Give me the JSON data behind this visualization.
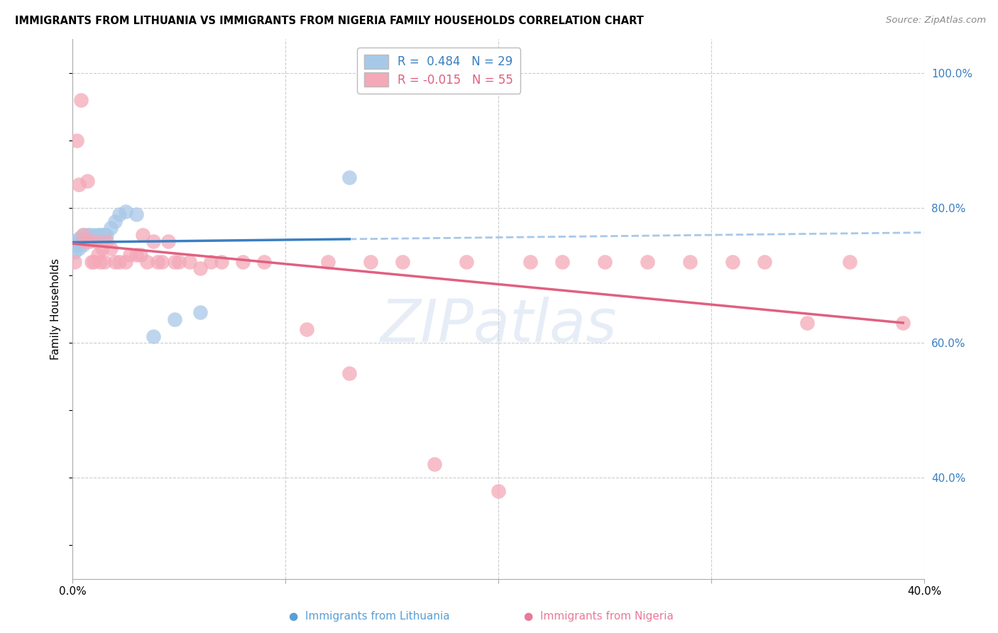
{
  "title": "IMMIGRANTS FROM LITHUANIA VS IMMIGRANTS FROM NIGERIA FAMILY HOUSEHOLDS CORRELATION CHART",
  "source": "Source: ZipAtlas.com",
  "ylabel": "Family Households",
  "xlim": [
    0.0,
    0.4
  ],
  "ylim": [
    0.25,
    1.05
  ],
  "x_ticks": [
    0.0,
    0.1,
    0.2,
    0.3,
    0.4
  ],
  "x_tick_labels": [
    "0.0%",
    "",
    "",
    "",
    "40.0%"
  ],
  "y_ticks_right": [
    0.4,
    0.6,
    0.8,
    1.0
  ],
  "y_tick_labels_right": [
    "40.0%",
    "60.0%",
    "80.0%",
    "100.0%"
  ],
  "legend_labels": [
    "R =  0.484   N = 29",
    "R = -0.015   N = 55"
  ],
  "watermark": "ZIPatlas",
  "background_color": "#ffffff",
  "grid_color": "#cccccc",
  "lithuania_color": "#a8c8e8",
  "nigeria_color": "#f4a8b8",
  "trend_lithuania_color": "#3a7fc1",
  "trend_nigeria_color": "#e06080",
  "trend_dashed_color": "#a8c8e8",
  "lith_x": [
    0.001,
    0.002,
    0.002,
    0.003,
    0.003,
    0.004,
    0.005,
    0.005,
    0.006,
    0.007,
    0.007,
    0.008,
    0.009,
    0.01,
    0.011,
    0.012,
    0.013,
    0.014,
    0.015,
    0.016,
    0.018,
    0.02,
    0.022,
    0.025,
    0.03,
    0.038,
    0.048,
    0.06,
    0.13
  ],
  "lith_y": [
    0.735,
    0.745,
    0.75,
    0.74,
    0.755,
    0.75,
    0.745,
    0.76,
    0.755,
    0.755,
    0.76,
    0.76,
    0.755,
    0.76,
    0.755,
    0.76,
    0.76,
    0.76,
    0.76,
    0.76,
    0.77,
    0.78,
    0.79,
    0.795,
    0.79,
    0.61,
    0.635,
    0.645,
    0.845
  ],
  "nig_x": [
    0.001,
    0.002,
    0.003,
    0.004,
    0.005,
    0.006,
    0.007,
    0.008,
    0.009,
    0.01,
    0.011,
    0.012,
    0.013,
    0.014,
    0.015,
    0.016,
    0.018,
    0.02,
    0.022,
    0.025,
    0.027,
    0.03,
    0.032,
    0.033,
    0.035,
    0.038,
    0.04,
    0.042,
    0.045,
    0.048,
    0.05,
    0.055,
    0.06,
    0.065,
    0.07,
    0.08,
    0.09,
    0.11,
    0.12,
    0.13,
    0.14,
    0.155,
    0.17,
    0.185,
    0.2,
    0.215,
    0.23,
    0.25,
    0.27,
    0.29,
    0.31,
    0.325,
    0.345,
    0.365,
    0.39
  ],
  "nig_y": [
    0.72,
    0.9,
    0.835,
    0.96,
    0.76,
    0.75,
    0.84,
    0.75,
    0.72,
    0.72,
    0.75,
    0.73,
    0.72,
    0.74,
    0.72,
    0.75,
    0.74,
    0.72,
    0.72,
    0.72,
    0.73,
    0.73,
    0.73,
    0.76,
    0.72,
    0.75,
    0.72,
    0.72,
    0.75,
    0.72,
    0.72,
    0.72,
    0.71,
    0.72,
    0.72,
    0.72,
    0.72,
    0.62,
    0.72,
    0.555,
    0.72,
    0.72,
    0.42,
    0.72,
    0.38,
    0.72,
    0.72,
    0.72,
    0.72,
    0.72,
    0.72,
    0.72,
    0.63,
    0.72,
    0.63
  ]
}
